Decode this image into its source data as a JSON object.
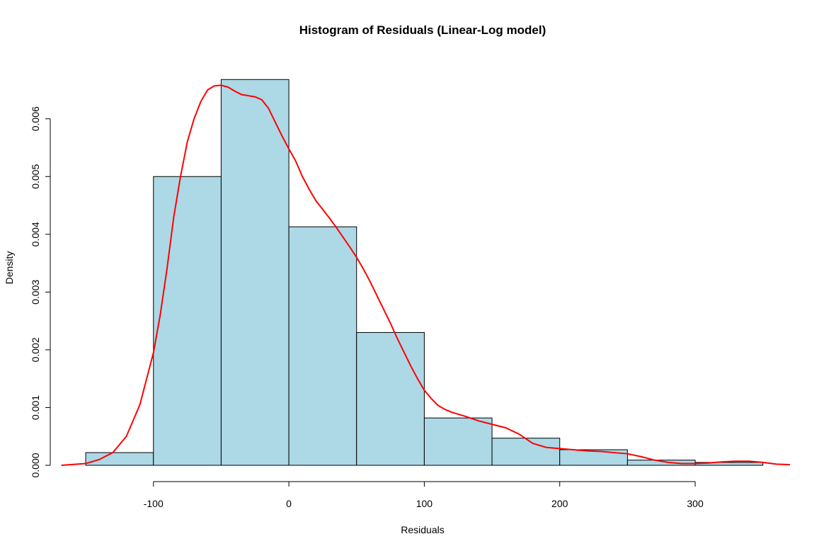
{
  "chart_data": {
    "type": "histogram",
    "title": "Histogram of Residuals (Linear-Log model)",
    "xlabel": "Residuals",
    "ylabel": "Density",
    "xlim": [
      -172,
      370
    ],
    "ylim": [
      0,
      0.0068
    ],
    "x_ticks": [
      -100,
      0,
      100,
      200,
      300
    ],
    "x_tick_labels": [
      "-100",
      "0",
      "100",
      "200",
      "300"
    ],
    "y_ticks": [
      0,
      0.001,
      0.002,
      0.003,
      0.004,
      0.005,
      0.006
    ],
    "y_tick_labels": [
      "0.000",
      "0.001",
      "0.002",
      "0.003",
      "0.004",
      "0.005",
      "0.006"
    ],
    "grid": false,
    "bar_color": "#add8e6",
    "bar_edge_color": "#000000",
    "density_color": "#ff0000",
    "bins": [
      {
        "x0": -150,
        "x1": -100,
        "density": 0.00022
      },
      {
        "x0": -100,
        "x1": -50,
        "density": 0.005
      },
      {
        "x0": -50,
        "x1": 0,
        "density": 0.00668
      },
      {
        "x0": 0,
        "x1": 50,
        "density": 0.00413
      },
      {
        "x0": 50,
        "x1": 100,
        "density": 0.0023
      },
      {
        "x0": 100,
        "x1": 150,
        "density": 0.00082
      },
      {
        "x0": 150,
        "x1": 200,
        "density": 0.00047
      },
      {
        "x0": 200,
        "x1": 250,
        "density": 0.00027
      },
      {
        "x0": 250,
        "x1": 300,
        "density": 9e-05
      },
      {
        "x0": 300,
        "x1": 350,
        "density": 5e-05
      }
    ],
    "density_curve": {
      "name": "",
      "x": [
        -168,
        -150,
        -140,
        -130,
        -120,
        -110,
        -100,
        -95,
        -90,
        -85,
        -80,
        -75,
        -70,
        -65,
        -60,
        -55,
        -50,
        -45,
        -40,
        -35,
        -30,
        -25,
        -20,
        -15,
        -10,
        -5,
        0,
        5,
        10,
        15,
        20,
        25,
        30,
        35,
        40,
        45,
        50,
        55,
        60,
        65,
        70,
        75,
        80,
        85,
        90,
        95,
        100,
        105,
        110,
        115,
        120,
        130,
        140,
        150,
        160,
        170,
        180,
        190,
        200,
        210,
        220,
        230,
        240,
        250,
        260,
        270,
        280,
        290,
        300,
        310,
        320,
        330,
        340,
        350,
        360,
        370
      ],
      "y": [
        0.0,
        3e-05,
        0.0001,
        0.00022,
        0.0005,
        0.00105,
        0.00195,
        0.0026,
        0.0034,
        0.0043,
        0.005,
        0.0056,
        0.006,
        0.0063,
        0.0065,
        0.00657,
        0.00658,
        0.00655,
        0.00648,
        0.00642,
        0.0064,
        0.00638,
        0.00633,
        0.00618,
        0.00594,
        0.0057,
        0.00548,
        0.00527,
        0.005,
        0.00478,
        0.00458,
        0.00443,
        0.00428,
        0.00412,
        0.00395,
        0.00378,
        0.0036,
        0.0034,
        0.00318,
        0.00294,
        0.0027,
        0.00246,
        0.0022,
        0.00196,
        0.00172,
        0.0015,
        0.0013,
        0.00116,
        0.00104,
        0.00097,
        0.00092,
        0.00085,
        0.00077,
        0.00071,
        0.00065,
        0.00054,
        0.00038,
        0.00031,
        0.00029,
        0.00027,
        0.00025,
        0.00024,
        0.00022,
        0.0002,
        0.00015,
        9e-05,
        5e-05,
        3e-05,
        3e-05,
        4e-05,
        6e-05,
        7e-05,
        7e-05,
        5e-05,
        2e-05,
        1e-05
      ]
    }
  }
}
